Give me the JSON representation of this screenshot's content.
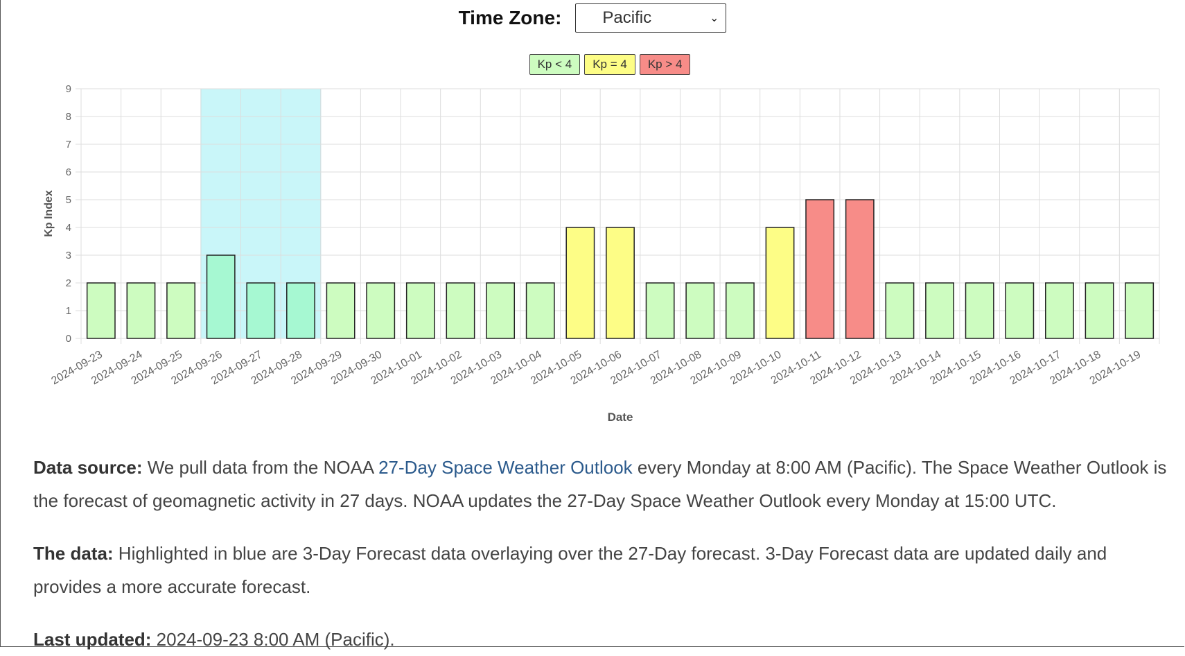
{
  "timezone": {
    "label": "Time Zone:",
    "selected": "Pacific"
  },
  "legend": [
    {
      "label": "Kp < 4",
      "color": "#cdfcc0"
    },
    {
      "label": "Kp = 4",
      "color": "#fdfd86"
    },
    {
      "label": "Kp > 4",
      "color": "#f78c88"
    }
  ],
  "colors": {
    "kp_low": "#cdfcc0",
    "kp_mid": "#fdfd86",
    "kp_high": "#f78c88",
    "kp_low_in_highlight": "#a6f8d2",
    "highlight": "#c9f6f9"
  },
  "chart_data": {
    "type": "bar",
    "xlabel": "Date",
    "ylabel": "Kp Index",
    "ylim": [
      0,
      9
    ],
    "yticks": [
      "0",
      "1",
      "2",
      "3",
      "4",
      "5",
      "6",
      "7",
      "8",
      "9"
    ],
    "grid": true,
    "legend_position": "top-center",
    "categories": [
      "2024-09-23",
      "2024-09-24",
      "2024-09-25",
      "2024-09-26",
      "2024-09-27",
      "2024-09-28",
      "2024-09-29",
      "2024-09-30",
      "2024-10-01",
      "2024-10-02",
      "2024-10-03",
      "2024-10-04",
      "2024-10-05",
      "2024-10-06",
      "2024-10-07",
      "2024-10-08",
      "2024-10-09",
      "2024-10-10",
      "2024-10-11",
      "2024-10-12",
      "2024-10-13",
      "2024-10-14",
      "2024-10-15",
      "2024-10-16",
      "2024-10-17",
      "2024-10-18",
      "2024-10-19"
    ],
    "values": [
      2,
      2,
      2,
      3,
      2,
      2,
      2,
      2,
      2,
      2,
      2,
      2,
      4,
      4,
      2,
      2,
      2,
      4,
      5,
      5,
      2,
      2,
      2,
      2,
      2,
      2,
      2
    ],
    "highlight_range": [
      "2024-09-26",
      "2024-09-28"
    ]
  },
  "text": {
    "source_label": "Data source:",
    "source_pre": " We pull data from the NOAA ",
    "source_link": "27-Day Space Weather Outlook",
    "source_post": " every Monday at 8:00 AM (Pacific). The Space Weather Outlook is the forecast of geomagnetic activity in 27 days. NOAA updates the 27-Day Space Weather Outlook every Monday at 15:00 UTC.",
    "data_label": "The data:",
    "data_text": " Highlighted in blue are 3-Day Forecast data overlaying over the 27-Day forecast. 3-Day Forecast data are updated daily and provides a more accurate forecast.",
    "updated_label": "Last updated:",
    "updated_text": " 2024-09-23 8:00 AM (Pacific)."
  }
}
